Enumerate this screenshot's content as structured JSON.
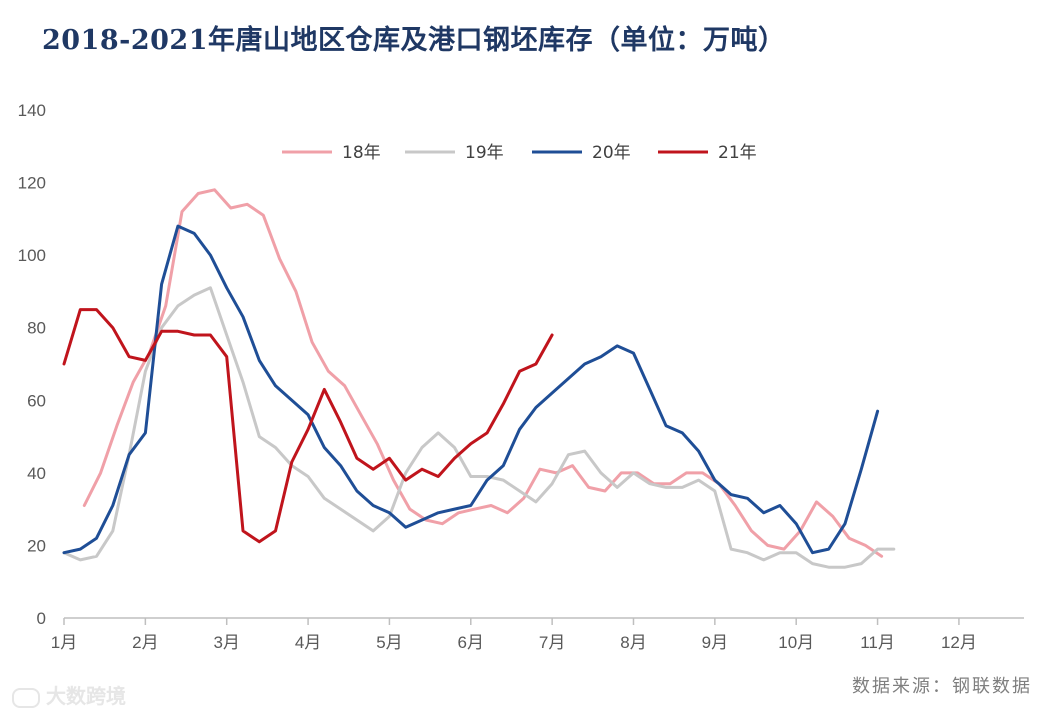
{
  "chart_data": {
    "type": "line",
    "title": "2018-2021年唐山地区仓库及港口钢坯库存（单位：万吨）",
    "source": "数据来源：钢联数据",
    "watermark": "大数跨境",
    "months": [
      "1月",
      "2月",
      "3月",
      "4月",
      "5月",
      "6月",
      "7月",
      "8月",
      "9月",
      "10月",
      "11月",
      "12月"
    ],
    "ylim": [
      0,
      140
    ],
    "yticks": [
      0,
      20,
      40,
      60,
      80,
      100,
      120,
      140
    ],
    "legend_position": "top",
    "series": [
      {
        "name": "18年",
        "color": "#f0a0a8",
        "x": [
          0.25,
          0.45,
          0.65,
          0.85,
          1.05,
          1.25,
          1.45,
          1.65,
          1.85,
          2.05,
          2.25,
          2.45,
          2.65,
          2.85,
          3.05,
          3.25,
          3.45,
          3.65,
          3.85,
          4.05,
          4.25,
          4.45,
          4.65,
          4.85,
          5.05,
          5.25,
          5.45,
          5.65,
          5.85,
          6.05,
          6.25,
          6.45,
          6.65,
          6.85,
          7.05,
          7.25,
          7.45,
          7.65,
          7.85,
          8.05,
          8.25,
          8.45,
          8.65,
          8.85,
          9.05,
          9.25,
          9.45,
          9.65,
          9.85,
          10.05,
          10.25,
          10.45,
          10.65,
          10.85,
          11.05,
          11.25,
          11.45
        ],
        "y": [
          31,
          40,
          53,
          65,
          73,
          86,
          112,
          117,
          118,
          113,
          114,
          111,
          99,
          90,
          76,
          68,
          64,
          56,
          48,
          38,
          30,
          27,
          26,
          29,
          30,
          31,
          29,
          33,
          41,
          40,
          42,
          36,
          35,
          40,
          40,
          37,
          37,
          40,
          40,
          37,
          31,
          24,
          20,
          19,
          24,
          32,
          28,
          22,
          20,
          17,
          null,
          null,
          null,
          null,
          null,
          null,
          null
        ]
      },
      {
        "name": "19年",
        "color": "#c8c8c8",
        "x": [
          0.0,
          0.2,
          0.4,
          0.6,
          0.8,
          1.0,
          1.2,
          1.4,
          1.6,
          1.8,
          2.0,
          2.2,
          2.4,
          2.6,
          2.8,
          3.0,
          3.2,
          3.4,
          3.6,
          3.8,
          4.0,
          4.2,
          4.4,
          4.6,
          4.8,
          5.0,
          5.2,
          5.4,
          5.6,
          5.8,
          6.0,
          6.2,
          6.4,
          6.6,
          6.8,
          7.0,
          7.2,
          7.4,
          7.6,
          7.8,
          8.0,
          8.2,
          8.4,
          8.6,
          8.8,
          9.0,
          9.2,
          9.4,
          9.6,
          9.8,
          10.0,
          10.2,
          10.4,
          10.6,
          10.8,
          11.0,
          11.2,
          11.4,
          11.6,
          11.8
        ],
        "y": [
          18,
          16,
          17,
          24,
          45,
          68,
          80,
          86,
          89,
          91,
          78,
          65,
          50,
          47,
          42,
          39,
          33,
          30,
          27,
          24,
          28,
          40,
          47,
          51,
          47,
          39,
          39,
          38,
          35,
          32,
          37,
          45,
          46,
          40,
          36,
          40,
          37,
          36,
          36,
          38,
          35,
          19,
          18,
          16,
          18,
          18,
          15,
          14,
          14,
          15,
          19,
          19,
          null,
          null,
          null,
          null,
          null,
          null,
          null,
          null
        ]
      },
      {
        "name": "20年",
        "color": "#1f4e96",
        "x": [
          0.0,
          0.2,
          0.4,
          0.6,
          0.8,
          1.0,
          1.2,
          1.4,
          1.6,
          1.8,
          2.0,
          2.2,
          2.4,
          2.6,
          2.8,
          3.0,
          3.2,
          3.4,
          3.6,
          3.8,
          4.0,
          4.2,
          4.4,
          4.6,
          4.8,
          5.0,
          5.2,
          5.4,
          5.6,
          5.8,
          6.0,
          6.2,
          6.4,
          6.6,
          6.8,
          7.0,
          7.2,
          7.4,
          7.6,
          7.8,
          8.0,
          8.2,
          8.4,
          8.6,
          8.8,
          9.0,
          9.2,
          9.4,
          9.6,
          9.8,
          10.0,
          10.2,
          10.4,
          10.6,
          10.8,
          11.0,
          11.2,
          11.4,
          11.6,
          11.8
        ],
        "y": [
          18,
          19,
          22,
          31,
          45,
          51,
          92,
          108,
          106,
          100,
          91,
          83,
          71,
          64,
          60,
          56,
          47,
          42,
          35,
          31,
          29,
          25,
          27,
          29,
          30,
          31,
          38,
          42,
          52,
          58,
          62,
          66,
          70,
          72,
          75,
          73,
          63,
          53,
          51,
          46,
          38,
          34,
          33,
          29,
          31,
          26,
          18,
          19,
          26,
          41,
          57,
          null,
          null,
          null,
          null,
          null,
          null,
          null,
          null,
          null
        ]
      },
      {
        "name": "21年",
        "color": "#c0141c",
        "x": [
          0.0,
          0.2,
          0.4,
          0.6,
          0.8,
          1.0,
          1.2,
          1.4,
          1.6,
          1.8,
          2.0,
          2.2,
          2.4,
          2.6,
          2.8,
          3.0,
          3.2,
          3.4,
          3.6,
          3.8,
          4.0,
          4.2,
          4.4,
          4.6,
          4.8,
          5.0,
          5.2,
          5.4,
          5.6,
          5.8,
          6.0,
          6.2,
          6.4,
          6.6,
          6.8,
          7.0,
          7.2
        ],
        "y": [
          70,
          85,
          85,
          80,
          72,
          71,
          79,
          79,
          78,
          78,
          72,
          24,
          21,
          24,
          43,
          52,
          63,
          54,
          44,
          41,
          44,
          38,
          41,
          39,
          44,
          48,
          51,
          59,
          68,
          70,
          78,
          null,
          null,
          null,
          null,
          null,
          null
        ]
      }
    ]
  }
}
